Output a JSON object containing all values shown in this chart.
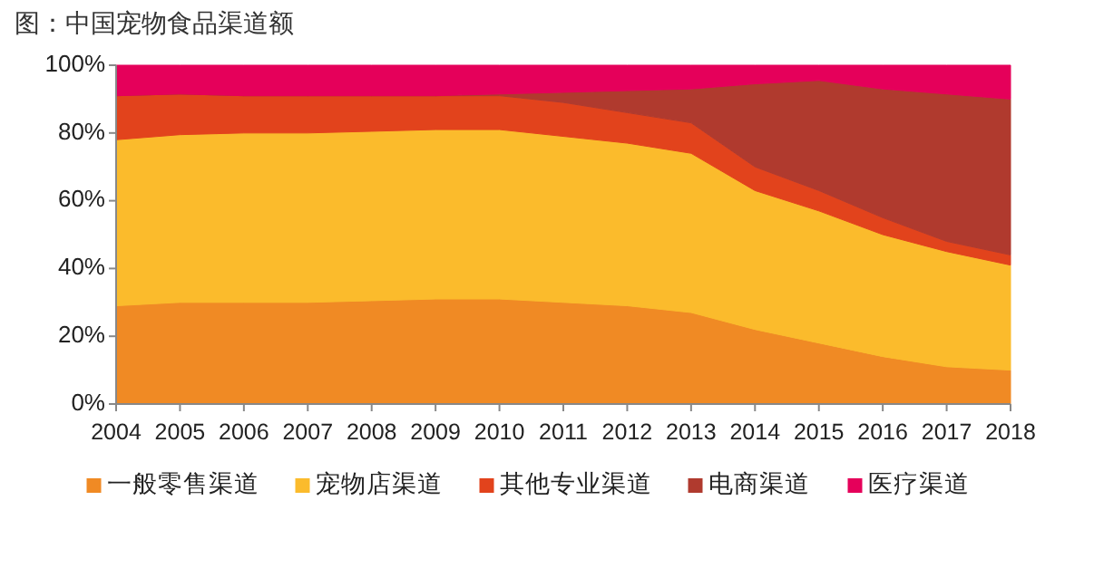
{
  "chart_data": {
    "type": "area",
    "stacked": true,
    "title": "图：中国宠物食品渠道额",
    "x": [
      2004,
      2005,
      2006,
      2007,
      2008,
      2009,
      2010,
      2011,
      2012,
      2013,
      2014,
      2015,
      2016,
      2017,
      2018
    ],
    "xlim": [
      2004,
      2018
    ],
    "xticks": [
      2004,
      2005,
      2006,
      2007,
      2008,
      2009,
      2010,
      2011,
      2012,
      2013,
      2014,
      2015,
      2016,
      2017,
      2018
    ],
    "ylim": [
      0,
      100
    ],
    "yticks": [
      {
        "value": 0,
        "label": "0%"
      },
      {
        "value": 20,
        "label": "20%"
      },
      {
        "value": 40,
        "label": "40%"
      },
      {
        "value": 60,
        "label": "60%"
      },
      {
        "value": 80,
        "label": "80%"
      },
      {
        "value": 100,
        "label": "100%"
      }
    ],
    "grid": false,
    "legend": "bottom",
    "series": [
      {
        "name": "一般零售渠道",
        "color": "#f08a24",
        "values": [
          29,
          30,
          30,
          30,
          30.5,
          31,
          31,
          30,
          29,
          27,
          22,
          18,
          14,
          11,
          10
        ]
      },
      {
        "name": "宠物店渠道",
        "color": "#fbbb2c",
        "values": [
          49,
          49.5,
          50,
          50,
          50,
          50,
          50,
          49,
          48,
          47,
          41,
          39,
          36,
          34,
          31
        ]
      },
      {
        "name": "其他专业渠道",
        "color": "#e2431c",
        "values": [
          13,
          12,
          11,
          11,
          10.5,
          10,
          10,
          10,
          9,
          9,
          7,
          6,
          5,
          3,
          3
        ]
      },
      {
        "name": "电商渠道",
        "color": "#b03a2e",
        "values": [
          0,
          0,
          0,
          0,
          0,
          0,
          0.5,
          3,
          6.5,
          10,
          24.5,
          32.5,
          38,
          43.5,
          46
        ]
      },
      {
        "name": "医疗渠道",
        "color": "#e5005a",
        "values": [
          9,
          8.5,
          9,
          9,
          9,
          9,
          8.5,
          8,
          7.5,
          7,
          5.5,
          4.5,
          7,
          8.5,
          10
        ]
      }
    ]
  }
}
